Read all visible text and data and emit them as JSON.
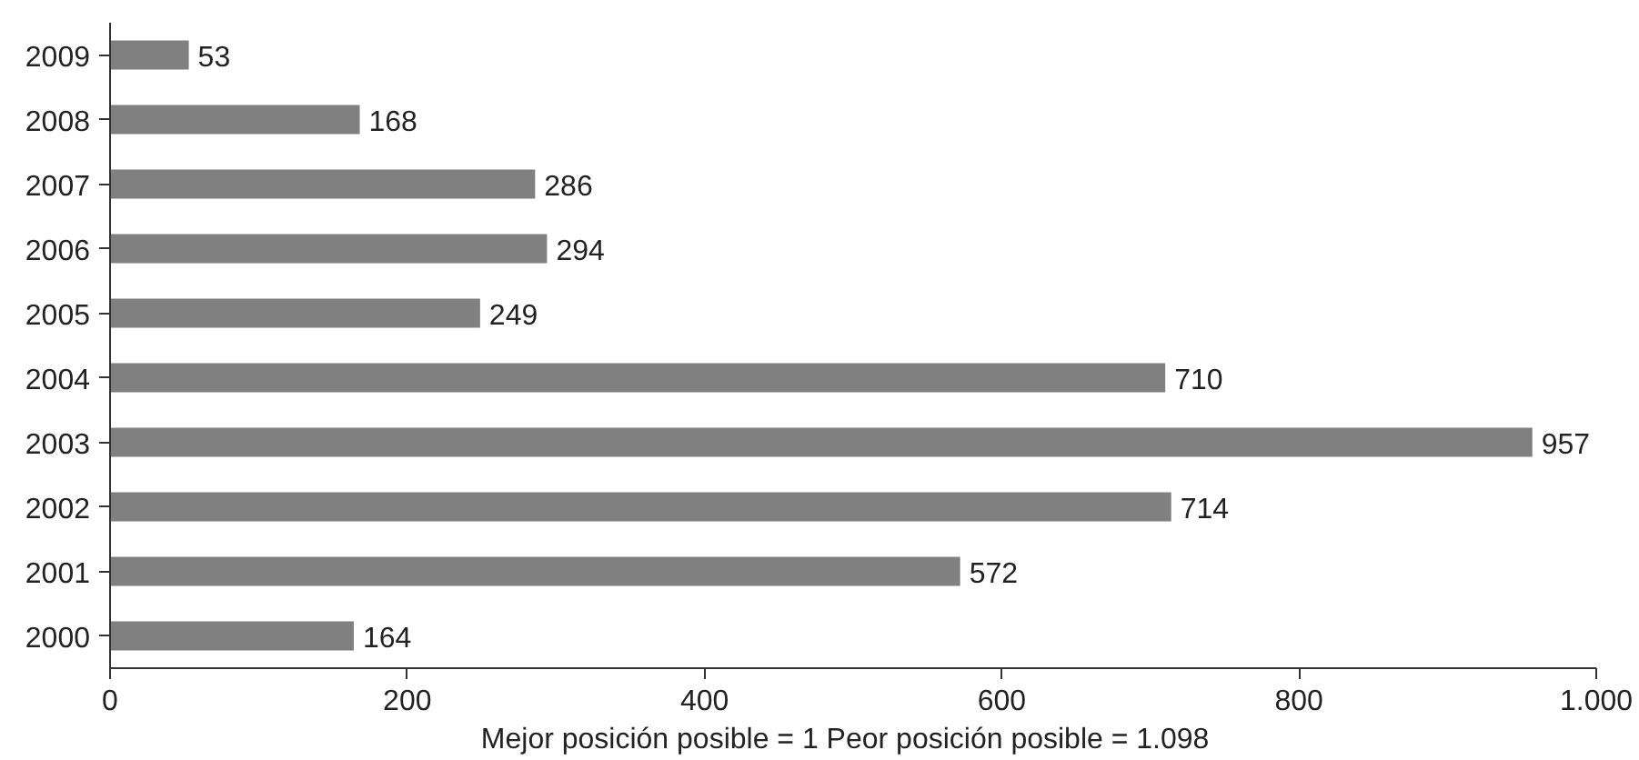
{
  "chart_data": {
    "type": "bar",
    "orientation": "horizontal",
    "xlabel": "Mejor posición posible = 1   Peor posición posible = 1.098",
    "categories": [
      "2009",
      "2008",
      "2007",
      "2006",
      "2005",
      "2004",
      "2003",
      "2002",
      "2001",
      "2000"
    ],
    "values": [
      53,
      168,
      286,
      294,
      249,
      710,
      957,
      714,
      572,
      164
    ],
    "color": "#808080",
    "data_labels": true,
    "xlim": [
      0,
      1000
    ],
    "xticks": [
      0,
      200,
      400,
      600,
      800,
      {
        "value": 1000,
        "label": "1.000"
      }
    ]
  }
}
